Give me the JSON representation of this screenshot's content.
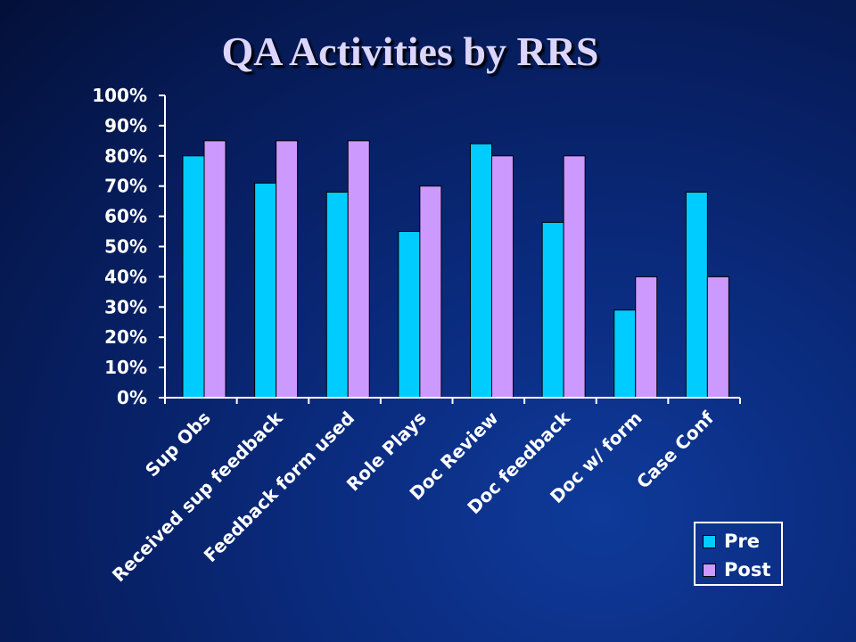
{
  "slide": {
    "title": "QA Activities by RRS"
  },
  "colors": {
    "pre": "#00ccff",
    "post": "#cc99ff",
    "axis": "#ffffff",
    "bar_outline": "#000000"
  },
  "legend": {
    "placement": "bottom-right",
    "items": [
      {
        "label": "Pre",
        "color": "#00ccff"
      },
      {
        "label": "Post",
        "color": "#cc99ff"
      }
    ]
  },
  "chart_data": {
    "type": "bar",
    "title": "QA Activities by RRS",
    "xlabel": "",
    "ylabel": "",
    "ylim": [
      0,
      100
    ],
    "yticks": [
      0,
      10,
      20,
      30,
      40,
      50,
      60,
      70,
      80,
      90,
      100
    ],
    "ytick_labels": [
      "0%",
      "10%",
      "20%",
      "30%",
      "40%",
      "50%",
      "60%",
      "70%",
      "80%",
      "90%",
      "100%"
    ],
    "categories": [
      "Sup Obs",
      "Received sup feedback",
      "Feedback form used",
      "Role Plays",
      "Doc Review",
      "Doc feedback",
      "Doc w/ form",
      "Case Conf"
    ],
    "series": [
      {
        "name": "Pre",
        "color": "#00ccff",
        "values": [
          80,
          71,
          68,
          55,
          84,
          58,
          29,
          68
        ]
      },
      {
        "name": "Post",
        "color": "#cc99ff",
        "values": [
          85,
          85,
          85,
          70,
          80,
          80,
          40,
          40
        ]
      }
    ],
    "grid": false
  }
}
